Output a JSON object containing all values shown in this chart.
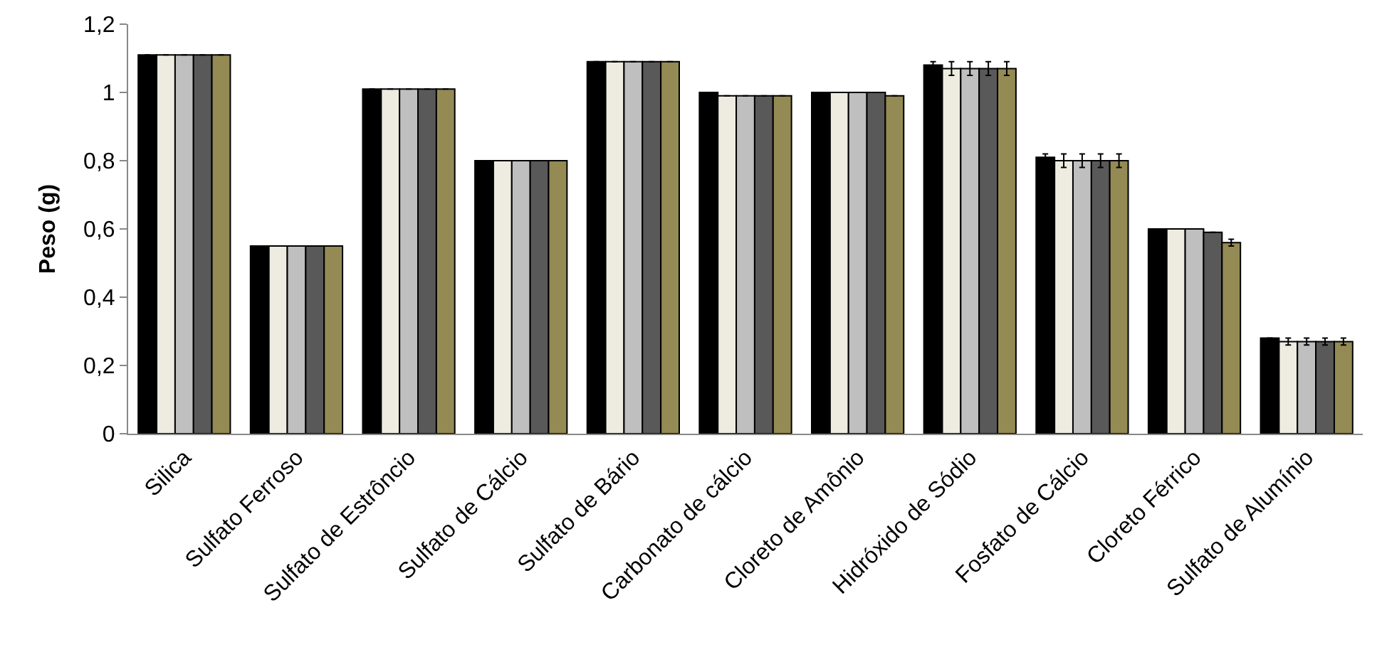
{
  "chart_data": {
    "type": "bar",
    "ylabel": "Peso (g)",
    "categories": [
      "Silica",
      "Sulfato Ferroso",
      "Sulfato de Estrôncio",
      "Sulfato de Cálcio",
      "Sulfato de Bário",
      "Carbonato de cálcio",
      "Cloreto de Amônio",
      "Hidróxido de Sódio",
      "Fosfato de Cálcio",
      "Cloreto Férrico",
      "Sulfato de Alumínio"
    ],
    "series": [
      {
        "color": "#000000",
        "values": [
          1.11,
          0.55,
          1.01,
          0.8,
          1.09,
          1.0,
          1.0,
          1.08,
          0.81,
          0.6,
          0.28
        ],
        "errors": [
          null,
          null,
          null,
          null,
          null,
          null,
          null,
          0.01,
          0.01,
          null,
          null
        ]
      },
      {
        "color": "#eeece1",
        "values": [
          1.11,
          0.55,
          1.01,
          0.8,
          1.09,
          0.99,
          1.0,
          1.07,
          0.8,
          0.6,
          0.27
        ],
        "errors": [
          null,
          null,
          null,
          null,
          null,
          null,
          null,
          0.02,
          0.02,
          null,
          0.01
        ]
      },
      {
        "color": "#bfbfbf",
        "values": [
          1.11,
          0.55,
          1.01,
          0.8,
          1.09,
          0.99,
          1.0,
          1.07,
          0.8,
          0.6,
          0.27
        ],
        "errors": [
          null,
          null,
          null,
          null,
          null,
          null,
          null,
          0.02,
          0.02,
          null,
          0.01
        ]
      },
      {
        "color": "#595959",
        "values": [
          1.11,
          0.55,
          1.01,
          0.8,
          1.09,
          0.99,
          1.0,
          1.07,
          0.8,
          0.59,
          0.27
        ],
        "errors": [
          null,
          null,
          null,
          null,
          null,
          null,
          null,
          0.02,
          0.02,
          null,
          0.01
        ]
      },
      {
        "color": "#948a54",
        "values": [
          1.11,
          0.55,
          1.01,
          0.8,
          1.09,
          0.99,
          0.99,
          1.07,
          0.8,
          0.56,
          0.27
        ],
        "errors": [
          null,
          null,
          null,
          null,
          null,
          null,
          null,
          0.02,
          0.02,
          0.01,
          0.01
        ]
      }
    ],
    "ylim": [
      0,
      1.2
    ],
    "yticks": [
      {
        "value": 0,
        "label": "0"
      },
      {
        "value": 0.2,
        "label": "0,2"
      },
      {
        "value": 0.4,
        "label": "0,4"
      },
      {
        "value": 0.6,
        "label": "0,6"
      },
      {
        "value": 0.8,
        "label": "0,8"
      },
      {
        "value": 1,
        "label": "1"
      },
      {
        "value": 1.2,
        "label": "1,2"
      }
    ],
    "tick_labels": true
  }
}
